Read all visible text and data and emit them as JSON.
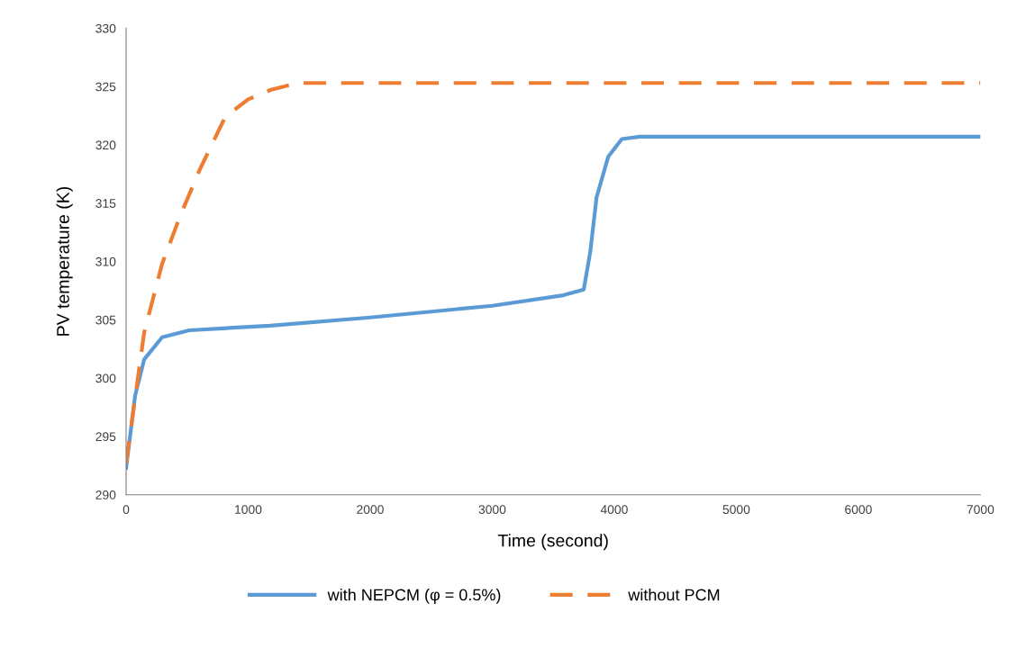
{
  "chart_data": {
    "type": "line",
    "xlabel": "Time (second)",
    "ylabel": "PV temperature (K)",
    "xlim": [
      0,
      7000
    ],
    "xticks": [
      0,
      1000,
      2000,
      3000,
      4000,
      5000,
      6000,
      7000
    ],
    "ylim": [
      290,
      330
    ],
    "yticks": [
      290,
      295,
      300,
      305,
      310,
      315,
      320,
      325,
      330
    ],
    "grid": false,
    "legend": "bottom",
    "marker": "none",
    "series": [
      {
        "name": "with NEPCM (φ = 0.5%)",
        "color": "#5b9bd5",
        "line_style": "solid",
        "x": [
          0,
          74,
          148,
          295,
          517,
          1181,
          2000,
          3000,
          3582,
          3750,
          3803,
          3855,
          3951,
          4062,
          4210,
          5000,
          6000,
          7000
        ],
        "values": [
          292.3,
          298.5,
          301.6,
          303.5,
          304.1,
          304.5,
          305.2,
          306.2,
          307.1,
          307.6,
          310.8,
          315.5,
          319.0,
          320.5,
          320.7,
          320.7,
          320.7,
          320.7
        ]
      },
      {
        "name": "without PCM",
        "color": "#ed7d31",
        "line_style": "dashed",
        "x": [
          0,
          148,
          295,
          443,
          600,
          812,
          1000,
          1181,
          1403,
          2000,
          3000,
          4000,
          5000,
          6000,
          7000
        ],
        "values": [
          292.7,
          303.9,
          309.8,
          313.9,
          317.8,
          322.4,
          323.9,
          324.7,
          325.3,
          325.3,
          325.3,
          325.3,
          325.3,
          325.3,
          325.3
        ]
      }
    ]
  }
}
